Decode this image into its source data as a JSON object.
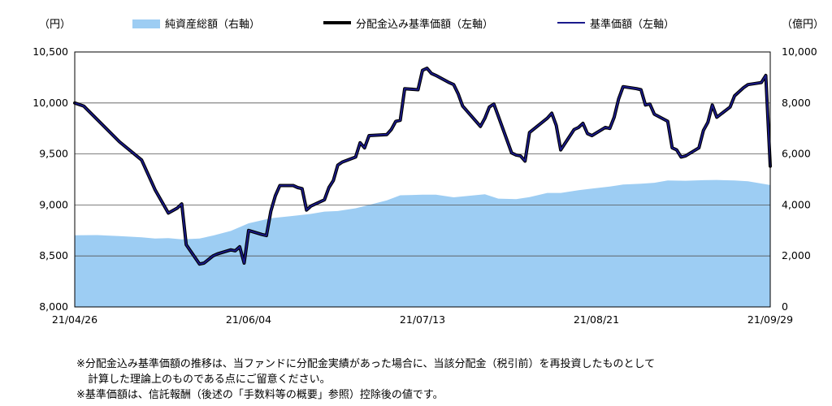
{
  "units": {
    "left": "（円）",
    "right": "（億円）"
  },
  "legend": [
    {
      "label": "純資産総額（右軸）",
      "color": "#9DCDF3",
      "kind": "area"
    },
    {
      "label": "分配金込み基準価額（左軸）",
      "color": "#000000",
      "kind": "line"
    },
    {
      "label": "基準価額（左軸）",
      "color": "#1A1A8C",
      "kind": "line"
    }
  ],
  "notes": [
    "※分配金込み基準価額の推移は、当ファンドに分配金実績があった場合に、当該分配金（税引前）を再投資したものとして",
    "計算した理論上のものである点にご留意ください。",
    "※基準価額は、信託報酬（後述の「手数料等の概要」参照）控除後の値です。"
  ],
  "chart_data": {
    "type": "line",
    "grid": true,
    "legend_position": "top",
    "x_ticks": [
      "21/04/26",
      "21/06/04",
      "21/07/13",
      "21/08/21",
      "21/09/29"
    ],
    "left_axis": {
      "unit": "（円）",
      "range": [
        8000,
        10500
      ],
      "ticks": [
        "8,000",
        "8,500",
        "9,000",
        "9,500",
        "10,000",
        "10,500"
      ]
    },
    "right_axis": {
      "unit": "（億円）",
      "range": [
        0,
        10000
      ],
      "ticks": [
        "0",
        "2,000",
        "4,000",
        "6,000",
        "8,000",
        "10,000"
      ]
    },
    "x_range": [
      "2021-04-26",
      "2021-09-29"
    ],
    "series": [
      {
        "name": "純資産総額（右軸）",
        "axis": "right",
        "kind": "area",
        "color": "#9DCDF3",
        "points": [
          [
            "2021-04-26",
            2810
          ],
          [
            "2021-05-01",
            2820
          ],
          [
            "2021-05-06",
            2780
          ],
          [
            "2021-05-11",
            2730
          ],
          [
            "2021-05-14",
            2680
          ],
          [
            "2021-05-17",
            2700
          ],
          [
            "2021-05-20",
            2650
          ],
          [
            "2021-05-24",
            2680
          ],
          [
            "2021-05-27",
            2800
          ],
          [
            "2021-05-31",
            2980
          ],
          [
            "2021-06-04",
            3280
          ],
          [
            "2021-06-09",
            3480
          ],
          [
            "2021-06-14",
            3570
          ],
          [
            "2021-06-18",
            3650
          ],
          [
            "2021-06-21",
            3740
          ],
          [
            "2021-06-24",
            3760
          ],
          [
            "2021-06-28",
            3870
          ],
          [
            "2021-07-01",
            4000
          ],
          [
            "2021-07-05",
            4180
          ],
          [
            "2021-07-08",
            4380
          ],
          [
            "2021-07-13",
            4400
          ],
          [
            "2021-07-16",
            4400
          ],
          [
            "2021-07-20",
            4300
          ],
          [
            "2021-07-23",
            4350
          ],
          [
            "2021-07-27",
            4420
          ],
          [
            "2021-07-30",
            4250
          ],
          [
            "2021-08-03",
            4230
          ],
          [
            "2021-08-06",
            4310
          ],
          [
            "2021-08-10",
            4470
          ],
          [
            "2021-08-13",
            4470
          ],
          [
            "2021-08-17",
            4580
          ],
          [
            "2021-08-20",
            4640
          ],
          [
            "2021-08-24",
            4720
          ],
          [
            "2021-08-27",
            4800
          ],
          [
            "2021-08-31",
            4830
          ],
          [
            "2021-09-03",
            4870
          ],
          [
            "2021-09-06",
            4960
          ],
          [
            "2021-09-10",
            4950
          ],
          [
            "2021-09-14",
            4970
          ],
          [
            "2021-09-17",
            4980
          ],
          [
            "2021-09-21",
            4960
          ],
          [
            "2021-09-24",
            4930
          ],
          [
            "2021-09-29",
            4780
          ]
        ]
      },
      {
        "name": "分配金込み基準価額（左軸）",
        "axis": "left",
        "kind": "line",
        "color": "#000000",
        "points": [
          [
            "2021-04-26",
            10000
          ],
          [
            "2021-04-28",
            9970
          ],
          [
            "2021-05-06",
            9620
          ],
          [
            "2021-05-11",
            9440
          ],
          [
            "2021-05-14",
            9150
          ],
          [
            "2021-05-17",
            8920
          ],
          [
            "2021-05-19",
            8970
          ],
          [
            "2021-05-20",
            9010
          ],
          [
            "2021-05-21",
            8610
          ],
          [
            "2021-05-24",
            8420
          ],
          [
            "2021-05-25",
            8430
          ],
          [
            "2021-05-27",
            8500
          ],
          [
            "2021-05-28",
            8520
          ],
          [
            "2021-05-31",
            8560
          ],
          [
            "2021-06-01",
            8550
          ],
          [
            "2021-06-02",
            8590
          ],
          [
            "2021-06-03",
            8430
          ],
          [
            "2021-06-04",
            8750
          ],
          [
            "2021-06-07",
            8710
          ],
          [
            "2021-06-08",
            8700
          ],
          [
            "2021-06-09",
            8940
          ],
          [
            "2021-06-10",
            9090
          ],
          [
            "2021-06-11",
            9190
          ],
          [
            "2021-06-14",
            9190
          ],
          [
            "2021-06-15",
            9170
          ],
          [
            "2021-06-16",
            9160
          ],
          [
            "2021-06-17",
            8950
          ],
          [
            "2021-06-18",
            8990
          ],
          [
            "2021-06-21",
            9050
          ],
          [
            "2021-06-22",
            9170
          ],
          [
            "2021-06-23",
            9240
          ],
          [
            "2021-06-24",
            9390
          ],
          [
            "2021-06-25",
            9420
          ],
          [
            "2021-06-28",
            9470
          ],
          [
            "2021-06-29",
            9610
          ],
          [
            "2021-06-30",
            9560
          ],
          [
            "2021-07-01",
            9680
          ],
          [
            "2021-07-05",
            9690
          ],
          [
            "2021-07-06",
            9740
          ],
          [
            "2021-07-07",
            9820
          ],
          [
            "2021-07-08",
            9830
          ],
          [
            "2021-07-09",
            10140
          ],
          [
            "2021-07-12",
            10130
          ],
          [
            "2021-07-13",
            10320
          ],
          [
            "2021-07-14",
            10340
          ],
          [
            "2021-07-15",
            10290
          ],
          [
            "2021-07-16",
            10270
          ],
          [
            "2021-07-19",
            10200
          ],
          [
            "2021-07-20",
            10180
          ],
          [
            "2021-07-21",
            10090
          ],
          [
            "2021-07-22",
            9970
          ],
          [
            "2021-07-26",
            9770
          ],
          [
            "2021-07-27",
            9850
          ],
          [
            "2021-07-28",
            9960
          ],
          [
            "2021-07-29",
            9990
          ],
          [
            "2021-07-30",
            9870
          ],
          [
            "2021-08-02",
            9510
          ],
          [
            "2021-08-03",
            9490
          ],
          [
            "2021-08-04",
            9480
          ],
          [
            "2021-08-05",
            9430
          ],
          [
            "2021-08-06",
            9710
          ],
          [
            "2021-08-10",
            9850
          ],
          [
            "2021-08-11",
            9900
          ],
          [
            "2021-08-12",
            9780
          ],
          [
            "2021-08-13",
            9540
          ],
          [
            "2021-08-16",
            9740
          ],
          [
            "2021-08-17",
            9760
          ],
          [
            "2021-08-18",
            9800
          ],
          [
            "2021-08-19",
            9700
          ],
          [
            "2021-08-20",
            9680
          ],
          [
            "2021-08-23",
            9760
          ],
          [
            "2021-08-24",
            9750
          ],
          [
            "2021-08-25",
            9860
          ],
          [
            "2021-08-26",
            10040
          ],
          [
            "2021-08-27",
            10160
          ],
          [
            "2021-08-30",
            10140
          ],
          [
            "2021-08-31",
            10130
          ],
          [
            "2021-09-01",
            9980
          ],
          [
            "2021-09-02",
            9990
          ],
          [
            "2021-09-03",
            9890
          ],
          [
            "2021-09-06",
            9820
          ],
          [
            "2021-09-07",
            9560
          ],
          [
            "2021-09-08",
            9540
          ],
          [
            "2021-09-09",
            9470
          ],
          [
            "2021-09-10",
            9480
          ],
          [
            "2021-09-13",
            9560
          ],
          [
            "2021-09-14",
            9730
          ],
          [
            "2021-09-15",
            9810
          ],
          [
            "2021-09-16",
            9980
          ],
          [
            "2021-09-17",
            9860
          ],
          [
            "2021-09-20",
            9960
          ],
          [
            "2021-09-21",
            10070
          ],
          [
            "2021-09-22",
            10110
          ],
          [
            "2021-09-23",
            10150
          ],
          [
            "2021-09-24",
            10180
          ],
          [
            "2021-09-27",
            10200
          ],
          [
            "2021-09-28",
            10270
          ],
          [
            "2021-09-29",
            9380
          ]
        ]
      },
      {
        "name": "基準価額（左軸）",
        "axis": "left",
        "kind": "line",
        "color": "#1A1A8C",
        "points": [
          [
            "2021-04-26",
            10000
          ],
          [
            "2021-04-28",
            9970
          ],
          [
            "2021-05-06",
            9620
          ],
          [
            "2021-05-11",
            9440
          ],
          [
            "2021-05-14",
            9150
          ],
          [
            "2021-05-17",
            8920
          ],
          [
            "2021-05-19",
            8970
          ],
          [
            "2021-05-20",
            9010
          ],
          [
            "2021-05-21",
            8610
          ],
          [
            "2021-05-24",
            8420
          ],
          [
            "2021-05-25",
            8430
          ],
          [
            "2021-05-27",
            8500
          ],
          [
            "2021-05-28",
            8520
          ],
          [
            "2021-05-31",
            8560
          ],
          [
            "2021-06-01",
            8550
          ],
          [
            "2021-06-02",
            8590
          ],
          [
            "2021-06-03",
            8430
          ],
          [
            "2021-06-04",
            8750
          ],
          [
            "2021-06-07",
            8710
          ],
          [
            "2021-06-08",
            8700
          ],
          [
            "2021-06-09",
            8940
          ],
          [
            "2021-06-10",
            9090
          ],
          [
            "2021-06-11",
            9190
          ],
          [
            "2021-06-14",
            9190
          ],
          [
            "2021-06-15",
            9170
          ],
          [
            "2021-06-16",
            9160
          ],
          [
            "2021-06-17",
            8950
          ],
          [
            "2021-06-18",
            8990
          ],
          [
            "2021-06-21",
            9050
          ],
          [
            "2021-06-22",
            9170
          ],
          [
            "2021-06-23",
            9240
          ],
          [
            "2021-06-24",
            9390
          ],
          [
            "2021-06-25",
            9420
          ],
          [
            "2021-06-28",
            9470
          ],
          [
            "2021-06-29",
            9610
          ],
          [
            "2021-06-30",
            9560
          ],
          [
            "2021-07-01",
            9680
          ],
          [
            "2021-07-05",
            9690
          ],
          [
            "2021-07-06",
            9740
          ],
          [
            "2021-07-07",
            9820
          ],
          [
            "2021-07-08",
            9830
          ],
          [
            "2021-07-09",
            10140
          ],
          [
            "2021-07-12",
            10130
          ],
          [
            "2021-07-13",
            10320
          ],
          [
            "2021-07-14",
            10340
          ],
          [
            "2021-07-15",
            10290
          ],
          [
            "2021-07-16",
            10270
          ],
          [
            "2021-07-19",
            10200
          ],
          [
            "2021-07-20",
            10180
          ],
          [
            "2021-07-21",
            10090
          ],
          [
            "2021-07-22",
            9970
          ],
          [
            "2021-07-26",
            9770
          ],
          [
            "2021-07-27",
            9850
          ],
          [
            "2021-07-28",
            9960
          ],
          [
            "2021-07-29",
            9990
          ],
          [
            "2021-07-30",
            9870
          ],
          [
            "2021-08-02",
            9510
          ],
          [
            "2021-08-03",
            9490
          ],
          [
            "2021-08-04",
            9480
          ],
          [
            "2021-08-05",
            9430
          ],
          [
            "2021-08-06",
            9710
          ],
          [
            "2021-08-10",
            9850
          ],
          [
            "2021-08-11",
            9900
          ],
          [
            "2021-08-12",
            9780
          ],
          [
            "2021-08-13",
            9540
          ],
          [
            "2021-08-16",
            9740
          ],
          [
            "2021-08-17",
            9760
          ],
          [
            "2021-08-18",
            9800
          ],
          [
            "2021-08-19",
            9700
          ],
          [
            "2021-08-20",
            9680
          ],
          [
            "2021-08-23",
            9760
          ],
          [
            "2021-08-24",
            9750
          ],
          [
            "2021-08-25",
            9860
          ],
          [
            "2021-08-26",
            10040
          ],
          [
            "2021-08-27",
            10160
          ],
          [
            "2021-08-30",
            10140
          ],
          [
            "2021-08-31",
            10130
          ],
          [
            "2021-09-01",
            9980
          ],
          [
            "2021-09-02",
            9990
          ],
          [
            "2021-09-03",
            9890
          ],
          [
            "2021-09-06",
            9820
          ],
          [
            "2021-09-07",
            9560
          ],
          [
            "2021-09-08",
            9540
          ],
          [
            "2021-09-09",
            9470
          ],
          [
            "2021-09-10",
            9480
          ],
          [
            "2021-09-13",
            9560
          ],
          [
            "2021-09-14",
            9730
          ],
          [
            "2021-09-15",
            9810
          ],
          [
            "2021-09-16",
            9980
          ],
          [
            "2021-09-17",
            9860
          ],
          [
            "2021-09-20",
            9960
          ],
          [
            "2021-09-21",
            10070
          ],
          [
            "2021-09-22",
            10110
          ],
          [
            "2021-09-23",
            10150
          ],
          [
            "2021-09-24",
            10180
          ],
          [
            "2021-09-27",
            10200
          ],
          [
            "2021-09-28",
            10270
          ],
          [
            "2021-09-29",
            9380
          ]
        ]
      }
    ]
  }
}
